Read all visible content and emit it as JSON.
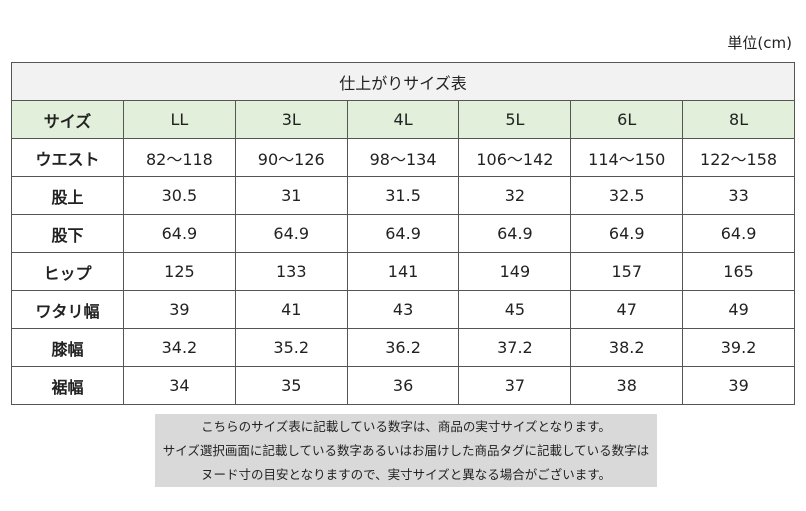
{
  "unit": "単位(cm)",
  "table": {
    "title": "仕上がりサイズ表",
    "header": [
      "サイズ",
      "LL",
      "3L",
      "4L",
      "5L",
      "6L",
      "8L"
    ],
    "rows": [
      [
        "ウエスト",
        "82〜118",
        "90〜126",
        "98〜134",
        "106〜142",
        "114〜150",
        "122〜158"
      ],
      [
        "股上",
        30.5,
        31,
        31.5,
        32,
        32.5,
        33
      ],
      [
        "股下",
        64.9,
        64.9,
        64.9,
        64.9,
        64.9,
        64.9
      ],
      [
        "ヒップ",
        125,
        133,
        141,
        149,
        157,
        165
      ],
      [
        "ワタリ幅",
        39,
        41,
        43,
        45,
        47,
        49
      ],
      [
        "膝幅",
        34.2,
        35.2,
        36.2,
        37.2,
        38.2,
        39.2
      ],
      [
        "裾幅",
        34,
        35,
        36,
        37,
        38,
        39
      ]
    ]
  },
  "notes": [
    "こちらのサイズ表に記載している数字は、商品の実寸サイズとなります。",
    "サイズ選択画面に記載している数字あるいはお届けした商品タグに記載している数字は",
    "ヌード寸の目安となりますので、実寸サイズと異なる場合がございます。"
  ]
}
